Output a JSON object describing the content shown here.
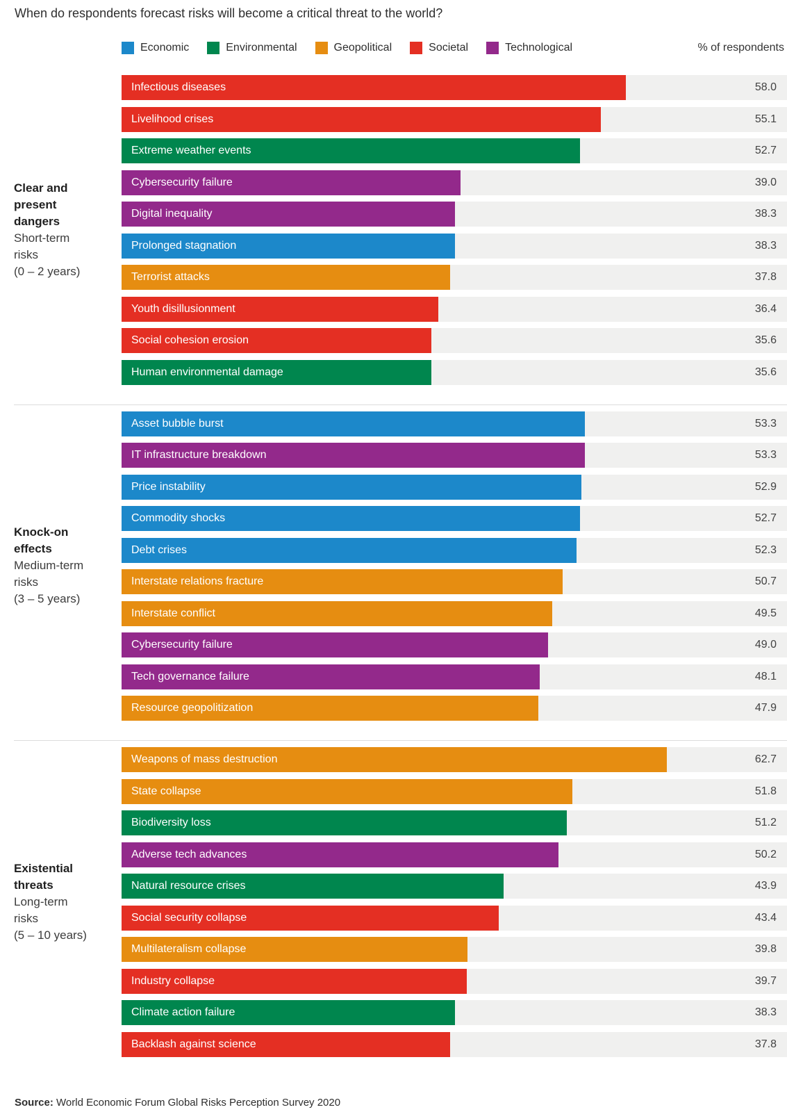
{
  "chart_data": {
    "type": "bar",
    "orientation": "horizontal",
    "title": "When do respondents forecast risks will become a critical threat to the world?",
    "value_axis_label": "% of respondents",
    "axis_max": 76.5,
    "track_color": "#f0f0ef",
    "legend_position": "top",
    "legend": [
      {
        "name": "Economic",
        "color": "#1c88ca"
      },
      {
        "name": "Environmental",
        "color": "#00864e"
      },
      {
        "name": "Geopolitical",
        "color": "#e68d11"
      },
      {
        "name": "Societal",
        "color": "#e42f23"
      },
      {
        "name": "Technological",
        "color": "#93298b"
      }
    ],
    "sections": [
      {
        "name": "Clear and present dangers",
        "subtitle": "Short-term risks",
        "range": "(0 – 2 years)",
        "bars": [
          {
            "label": "Infectious diseases",
            "category": "Societal",
            "value": 58.0
          },
          {
            "label": "Livelihood crises",
            "category": "Societal",
            "value": 55.1
          },
          {
            "label": "Extreme weather events",
            "category": "Environmental",
            "value": 52.7
          },
          {
            "label": "Cybersecurity failure",
            "category": "Technological",
            "value": 39.0
          },
          {
            "label": "Digital inequality",
            "category": "Technological",
            "value": 38.3
          },
          {
            "label": "Prolonged stagnation",
            "category": "Economic",
            "value": 38.3
          },
          {
            "label": "Terrorist attacks",
            "category": "Geopolitical",
            "value": 37.8
          },
          {
            "label": "Youth disillusionment",
            "category": "Societal",
            "value": 36.4
          },
          {
            "label": "Social cohesion erosion",
            "category": "Societal",
            "value": 35.6
          },
          {
            "label": "Human environmental damage",
            "category": "Environmental",
            "value": 35.6
          }
        ]
      },
      {
        "name": "Knock-on effects",
        "subtitle": "Medium-term risks",
        "range": "(3 – 5 years)",
        "bars": [
          {
            "label": "Asset bubble burst",
            "category": "Economic",
            "value": 53.3
          },
          {
            "label": "IT infrastructure breakdown",
            "category": "Technological",
            "value": 53.3
          },
          {
            "label": "Price instability",
            "category": "Economic",
            "value": 52.9
          },
          {
            "label": "Commodity shocks",
            "category": "Economic",
            "value": 52.7
          },
          {
            "label": "Debt crises",
            "category": "Economic",
            "value": 52.3
          },
          {
            "label": "Interstate relations fracture",
            "category": "Geopolitical",
            "value": 50.7
          },
          {
            "label": "Interstate conflict",
            "category": "Geopolitical",
            "value": 49.5
          },
          {
            "label": "Cybersecurity failure",
            "category": "Technological",
            "value": 49.0
          },
          {
            "label": "Tech governance failure",
            "category": "Technological",
            "value": 48.1
          },
          {
            "label": "Resource geopolitization",
            "category": "Geopolitical",
            "value": 47.9
          }
        ]
      },
      {
        "name": "Existential threats",
        "subtitle": "Long-term risks",
        "range": "(5 – 10 years)",
        "bars": [
          {
            "label": "Weapons of mass destruction",
            "category": "Geopolitical",
            "value": 62.7
          },
          {
            "label": "State collapse",
            "category": "Geopolitical",
            "value": 51.8
          },
          {
            "label": "Biodiversity loss",
            "category": "Environmental",
            "value": 51.2
          },
          {
            "label": "Adverse tech advances",
            "category": "Technological",
            "value": 50.2
          },
          {
            "label": "Natural resource crises",
            "category": "Environmental",
            "value": 43.9
          },
          {
            "label": "Social security collapse",
            "category": "Societal",
            "value": 43.4
          },
          {
            "label": "Multilateralism collapse",
            "category": "Geopolitical",
            "value": 39.8
          },
          {
            "label": "Industry collapse",
            "category": "Societal",
            "value": 39.7
          },
          {
            "label": "Climate action failure",
            "category": "Environmental",
            "value": 38.3
          },
          {
            "label": "Backlash against science",
            "category": "Societal",
            "value": 37.8
          }
        ]
      }
    ],
    "source": {
      "label": "Source:",
      "text": " World Economic Forum Global Risks Perception Survey 2020"
    }
  }
}
